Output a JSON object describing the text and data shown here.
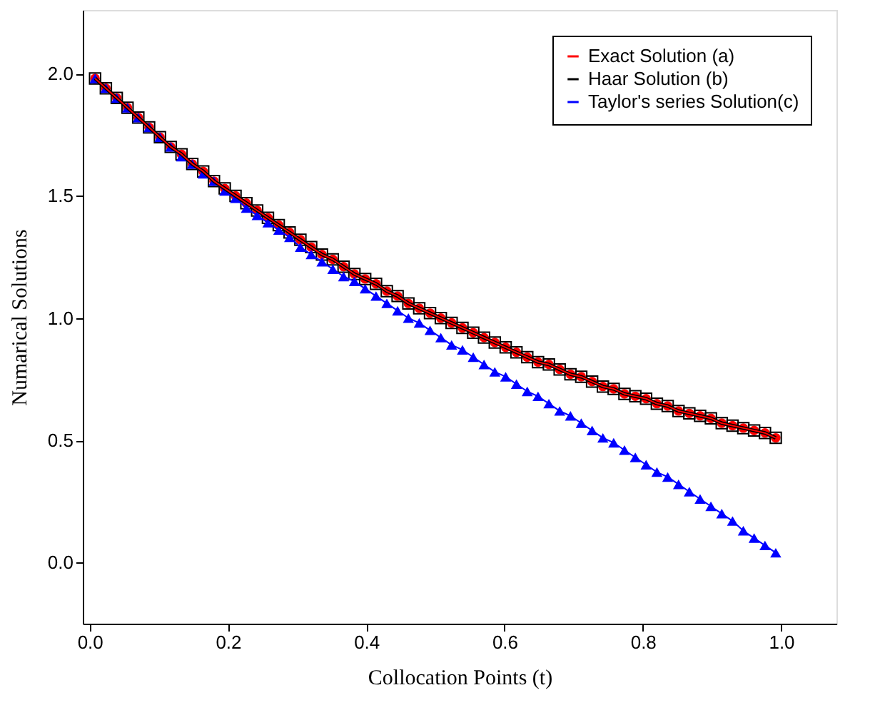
{
  "chart_data": {
    "type": "line",
    "xlabel": "Collocation Points (t)",
    "ylabel": "Numarical Solutions",
    "x": [
      0.0078,
      0.0234,
      0.0391,
      0.0547,
      0.0703,
      0.0859,
      0.1016,
      0.1172,
      0.1328,
      0.1484,
      0.1641,
      0.1797,
      0.1953,
      0.2109,
      0.2266,
      0.2422,
      0.2578,
      0.2734,
      0.2891,
      0.3047,
      0.3203,
      0.3359,
      0.3516,
      0.3672,
      0.3828,
      0.3984,
      0.4141,
      0.4297,
      0.4453,
      0.4609,
      0.4766,
      0.4922,
      0.5078,
      0.5234,
      0.5391,
      0.5547,
      0.5703,
      0.5859,
      0.6016,
      0.6172,
      0.6328,
      0.6484,
      0.6641,
      0.6797,
      0.6953,
      0.7109,
      0.7266,
      0.7422,
      0.7578,
      0.7734,
      0.7891,
      0.8047,
      0.8203,
      0.8359,
      0.8516,
      0.8672,
      0.8828,
      0.8984,
      0.9141,
      0.9297,
      0.9453,
      0.9609,
      0.9766,
      0.9922
    ],
    "series": [
      {
        "name": "Exact Solution (a)",
        "color": "#ff0000",
        "marker": "circle",
        "values": [
          1.98,
          1.94,
          1.9,
          1.86,
          1.82,
          1.78,
          1.74,
          1.7,
          1.67,
          1.63,
          1.6,
          1.56,
          1.53,
          1.5,
          1.47,
          1.44,
          1.41,
          1.38,
          1.35,
          1.32,
          1.29,
          1.26,
          1.24,
          1.21,
          1.18,
          1.16,
          1.14,
          1.11,
          1.09,
          1.06,
          1.04,
          1.02,
          1.0,
          0.98,
          0.96,
          0.94,
          0.92,
          0.9,
          0.88,
          0.86,
          0.84,
          0.82,
          0.81,
          0.79,
          0.77,
          0.76,
          0.74,
          0.72,
          0.71,
          0.69,
          0.68,
          0.67,
          0.65,
          0.64,
          0.62,
          0.61,
          0.6,
          0.59,
          0.57,
          0.56,
          0.55,
          0.54,
          0.53,
          0.51
        ]
      },
      {
        "name": "Haar Solution (b)",
        "color": "#000000",
        "marker": "square",
        "values": [
          1.98,
          1.94,
          1.9,
          1.86,
          1.82,
          1.78,
          1.74,
          1.7,
          1.67,
          1.63,
          1.6,
          1.56,
          1.53,
          1.5,
          1.47,
          1.44,
          1.41,
          1.38,
          1.35,
          1.32,
          1.29,
          1.26,
          1.24,
          1.21,
          1.18,
          1.16,
          1.14,
          1.11,
          1.09,
          1.06,
          1.04,
          1.02,
          1.0,
          0.98,
          0.96,
          0.94,
          0.92,
          0.9,
          0.88,
          0.86,
          0.84,
          0.82,
          0.81,
          0.79,
          0.77,
          0.76,
          0.74,
          0.72,
          0.71,
          0.69,
          0.68,
          0.67,
          0.65,
          0.64,
          0.62,
          0.61,
          0.6,
          0.59,
          0.57,
          0.56,
          0.55,
          0.54,
          0.53,
          0.51
        ]
      },
      {
        "name": "Taylor's series Solution(c)",
        "color": "#0000ff",
        "marker": "triangle",
        "values": [
          1.98,
          1.94,
          1.9,
          1.86,
          1.82,
          1.78,
          1.74,
          1.7,
          1.66,
          1.63,
          1.59,
          1.56,
          1.52,
          1.49,
          1.45,
          1.42,
          1.39,
          1.36,
          1.33,
          1.29,
          1.26,
          1.23,
          1.2,
          1.17,
          1.15,
          1.12,
          1.09,
          1.06,
          1.03,
          1.0,
          0.98,
          0.95,
          0.92,
          0.89,
          0.87,
          0.84,
          0.81,
          0.78,
          0.76,
          0.73,
          0.7,
          0.68,
          0.65,
          0.62,
          0.6,
          0.57,
          0.54,
          0.51,
          0.49,
          0.46,
          0.43,
          0.4,
          0.37,
          0.35,
          0.32,
          0.29,
          0.26,
          0.23,
          0.2,
          0.17,
          0.13,
          0.1,
          0.07,
          0.04
        ]
      }
    ],
    "xlim": [
      -0.01,
      1.08
    ],
    "xticks": [
      {
        "value": 0,
        "label": "0.0"
      },
      {
        "value": 0.2,
        "label": "0.2"
      },
      {
        "value": 0.4,
        "label": "0.4"
      },
      {
        "value": 0.6,
        "label": "0.6"
      },
      {
        "value": 0.8,
        "label": "0.8"
      },
      {
        "value": 1,
        "label": "1.0"
      }
    ],
    "ylim": [
      -0.25,
      2.26
    ],
    "yticks": [
      {
        "value": 0,
        "label": "0.0"
      },
      {
        "value": 0.5,
        "label": "0.5"
      },
      {
        "value": 1,
        "label": "1.0"
      },
      {
        "value": 1.5,
        "label": "1.5"
      },
      {
        "value": 2,
        "label": "2.0"
      }
    ],
    "grid": false,
    "legend": "top right",
    "line_style": "solid"
  }
}
